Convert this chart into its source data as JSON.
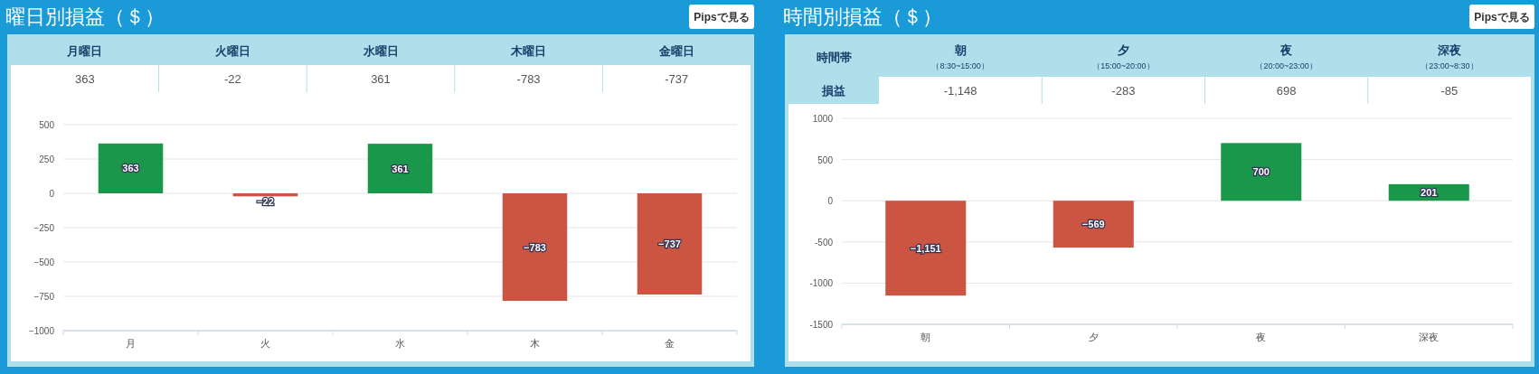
{
  "chart_data": [
    {
      "type": "bar",
      "title": "曜日別損益（＄）",
      "categories": [
        "月",
        "火",
        "水",
        "木",
        "金"
      ],
      "values": [
        363,
        -22,
        361,
        -783,
        -737
      ],
      "value_labels": [
        "363",
        "−22",
        "361",
        "−783",
        "−737"
      ],
      "colors": [
        "#1a974b",
        "#cc5442",
        "#1a974b",
        "#cc5442",
        "#cc5442"
      ],
      "ylim": [
        -1000,
        500
      ],
      "yticks": [
        {
          "value": -1000,
          "label": "−1000"
        },
        {
          "value": -750,
          "label": "−750"
        },
        {
          "value": -500,
          "label": "−500"
        },
        {
          "value": -250,
          "label": "−250"
        },
        0,
        250,
        500
      ],
      "grid": "y",
      "annotations": [
        "Pipsで見る",
        "月曜日",
        "火曜日",
        "水曜日",
        "木曜日",
        "金曜日",
        "363",
        "-22",
        "361",
        "-783",
        "-737"
      ]
    },
    {
      "type": "bar",
      "title": "時間別損益（＄）",
      "categories": [
        "朝",
        "夕",
        "夜",
        "深夜"
      ],
      "values": [
        -1151,
        -569,
        700,
        201
      ],
      "value_labels": [
        "−1,151",
        "−569",
        "700",
        "201"
      ],
      "colors": [
        "#cc5442",
        "#cc5442",
        "#1a974b",
        "#1a974b"
      ],
      "ylim": [
        -1500,
        1000
      ],
      "yticks": [
        -1500,
        -1000,
        -500,
        0,
        500,
        1000
      ],
      "grid": "y",
      "annotations": [
        "Pipsで見る",
        "時間帯",
        "朝",
        "（8:30~15:00）",
        "夕",
        "（15:00~20:00）",
        "夜",
        "（20:00~23:00）",
        "深夜",
        "（23:00~8:30）",
        "損益",
        "-1,148",
        "-283",
        "698",
        "-85"
      ]
    }
  ]
}
